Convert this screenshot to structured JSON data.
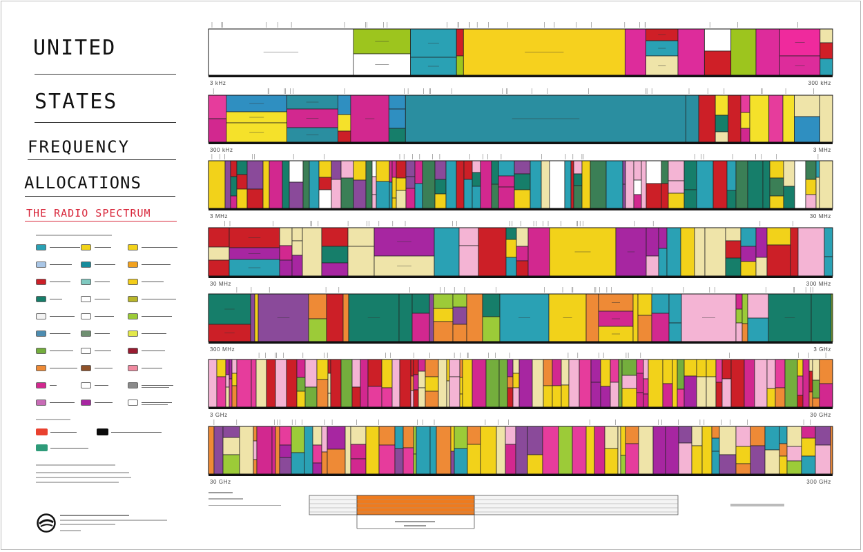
{
  "title": {
    "line1": "UNITED",
    "line2": "STATES",
    "line3": "FREQUENCY",
    "line4": "ALLOCATIONS",
    "subtitle": "THE RADIO SPECTRUM"
  },
  "legend": {
    "swatch_colors": [
      [
        "#2aa1b4",
        "#f1d318",
        "#f2d21a"
      ],
      [
        "#a9c6e6",
        "#168b9c",
        "#f2a21e"
      ],
      [
        "#cc1f27",
        "#7fc9c0",
        "#f3cd19"
      ],
      [
        "#167e6a",
        "#ffffff",
        "#b9b62a"
      ],
      [
        "#f3f3f3",
        "#ffffff",
        "#9ccb38"
      ],
      [
        "#4d8cb0",
        "#6f8f71",
        "#e3e84a"
      ],
      [
        "#74ae3d",
        "#ffffff",
        "#991c31"
      ],
      [
        "#ee8a36",
        "#8f5229",
        "#f08aa0"
      ],
      [
        "#d2288f",
        "#ffffff",
        "#8a8a8a"
      ],
      [
        "#c86bb6",
        "#a726a1",
        "#ffffff"
      ]
    ],
    "activity_colors": [
      "#e9412f",
      "#0b0b0b",
      "#2e9b79"
    ]
  },
  "bands": [
    {
      "left_label": "3 kHz",
      "right_label": "300 kHz"
    },
    {
      "left_label": "300 kHz",
      "right_label": "3 MHz"
    },
    {
      "left_label": "3 MHz",
      "right_label": "30 MHz"
    },
    {
      "left_label": "30 MHz",
      "right_label": "300 MHz"
    },
    {
      "left_label": "300 MHz",
      "right_label": "3 GHz"
    },
    {
      "left_label": "3 GHz",
      "right_label": "30 GHz"
    },
    {
      "left_label": "30 GHz",
      "right_label": "300 GHz"
    }
  ],
  "band_palettes": [
    [
      "#ffffff",
      "#9dc51e",
      "#dd2c9b",
      "#efe4a9",
      "#ef2a9d",
      "#f6d11e",
      "#2aa1b4",
      "#cf1f27",
      "#ffffff"
    ],
    [
      "#cc1f27",
      "#2f8fc1",
      "#efe4a9",
      "#2a8ea0",
      "#e63c9c",
      "#f5e12a",
      "#167e6a",
      "#d2288f"
    ],
    [
      "#2aa1b4",
      "#d2288f",
      "#167e6a",
      "#efe4a9",
      "#ffffff",
      "#f4b4d4",
      "#8a4a9a",
      "#f2d21a",
      "#cc1f27",
      "#3b7f56"
    ],
    [
      "#2aa1b4",
      "#167e6a",
      "#d2288f",
      "#cc1f27",
      "#f4b4d4",
      "#efe4a9",
      "#f2d21a",
      "#a726a1"
    ],
    [
      "#d2288f",
      "#f2d21a",
      "#2aa1b4",
      "#cc1f27",
      "#8a4a9a",
      "#167e6a",
      "#ee8a36",
      "#f4b4d4",
      "#9ccb38"
    ],
    [
      "#f2d21a",
      "#d2288f",
      "#ee8a36",
      "#cc1f27",
      "#f4b4d4",
      "#a726a1",
      "#74ae3d",
      "#e63c9c",
      "#efe4a9"
    ],
    [
      "#d2288f",
      "#f2d21a",
      "#ee8a36",
      "#9ccb38",
      "#f4b4d4",
      "#a726a1",
      "#2aa1b4",
      "#e63c9c",
      "#efe4a9",
      "#8a4a9a"
    ]
  ]
}
